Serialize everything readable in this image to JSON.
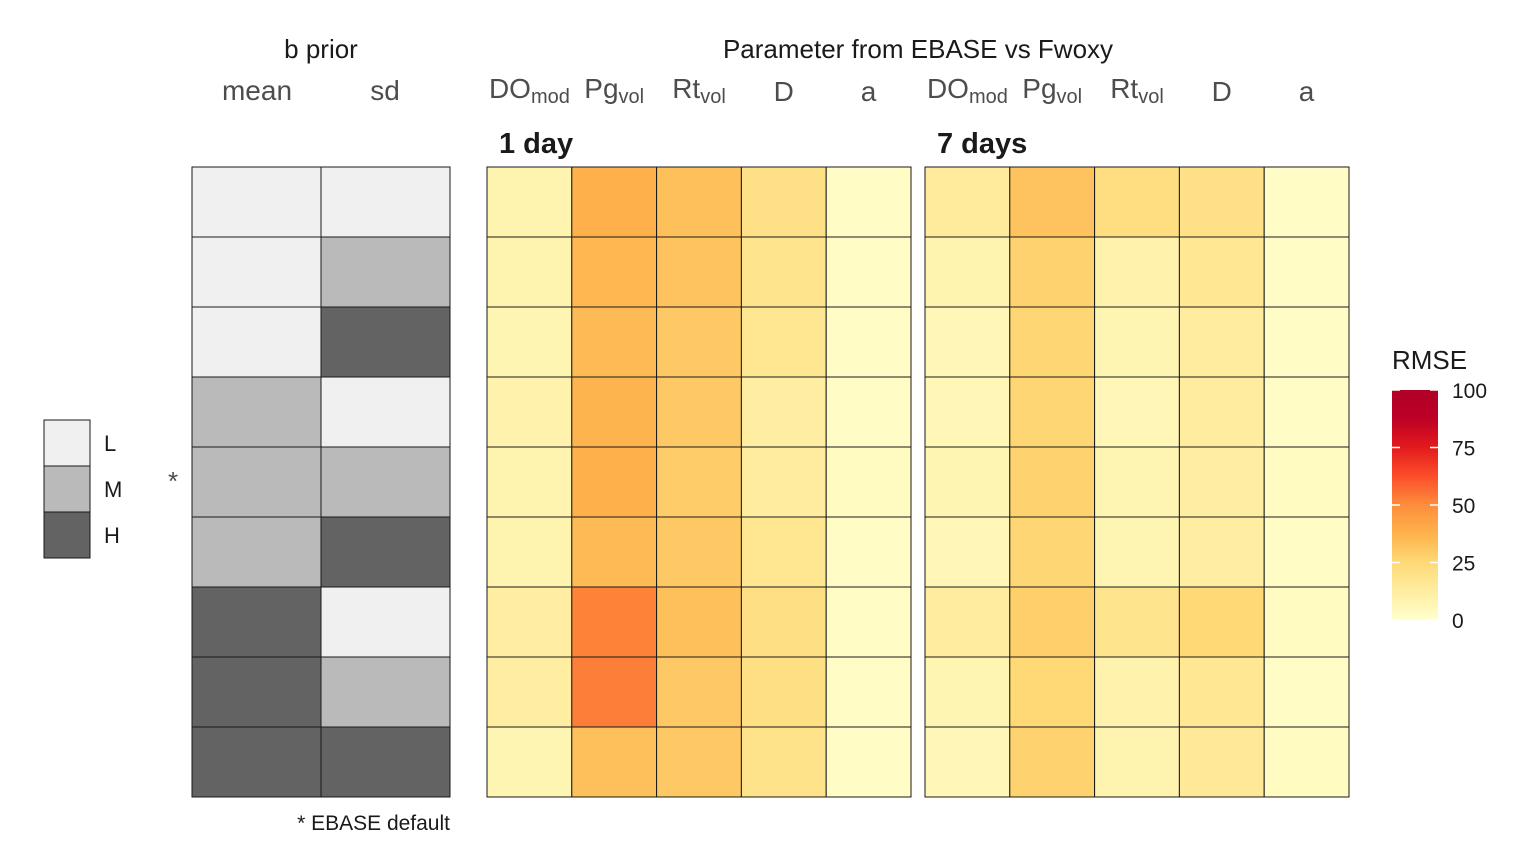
{
  "chart_data": {
    "type": "heatmap",
    "left_header": {
      "title": "b prior",
      "columns": [
        "mean",
        "sd"
      ]
    },
    "right_header": {
      "title": "Parameter from EBASE vs Fwoxy"
    },
    "parameters": [
      {
        "base": "DO",
        "sub": "mod"
      },
      {
        "base": "Pg",
        "sub": "vol"
      },
      {
        "base": "Rt",
        "sub": "vol"
      },
      {
        "base": "D",
        "sub": ""
      },
      {
        "base": "a",
        "sub": ""
      }
    ],
    "prior_levels": [
      [
        "L",
        "L"
      ],
      [
        "L",
        "M"
      ],
      [
        "L",
        "H"
      ],
      [
        "M",
        "L"
      ],
      [
        "M",
        "M"
      ],
      [
        "M",
        "H"
      ],
      [
        "H",
        "L"
      ],
      [
        "H",
        "M"
      ],
      [
        "H",
        "H"
      ]
    ],
    "level_colors": {
      "L": "#f0f0f0",
      "M": "#bababa",
      "H": "#636363"
    },
    "level_legend": [
      "L",
      "M",
      "H"
    ],
    "default_row_index": 4,
    "default_marker": "*",
    "footnote": "* EBASE default",
    "panels": [
      {
        "title": "1 day",
        "values": [
          [
            8,
            38,
            33,
            20,
            2
          ],
          [
            8,
            36,
            32,
            18,
            2
          ],
          [
            7,
            35,
            30,
            17,
            2
          ],
          [
            9,
            37,
            30,
            12,
            2
          ],
          [
            8,
            38,
            29,
            13,
            3
          ],
          [
            8,
            35,
            30,
            17,
            2
          ],
          [
            12,
            52,
            33,
            21,
            2
          ],
          [
            12,
            53,
            30,
            21,
            2
          ],
          [
            7,
            33,
            30,
            19,
            2
          ]
        ]
      },
      {
        "title": "7 days",
        "values": [
          [
            14,
            32,
            22,
            20,
            2
          ],
          [
            8,
            27,
            9,
            16,
            2
          ],
          [
            6,
            26,
            7,
            13,
            2
          ],
          [
            6,
            26,
            6,
            13,
            2
          ],
          [
            7,
            27,
            7,
            12,
            3
          ],
          [
            6,
            26,
            7,
            12,
            2
          ],
          [
            13,
            28,
            18,
            25,
            3
          ],
          [
            7,
            25,
            9,
            16,
            2
          ],
          [
            6,
            27,
            8,
            15,
            3
          ]
        ]
      }
    ],
    "colorbar": {
      "title": "RMSE",
      "min": 0,
      "max": 100,
      "ticks": [
        0,
        25,
        50,
        75,
        100
      ],
      "stops": [
        "#ffffcc",
        "#ffeda0",
        "#fed976",
        "#feb24c",
        "#fd8d3c",
        "#fc4e2a",
        "#e31a1c",
        "#bd0026",
        "#b10026"
      ]
    }
  }
}
